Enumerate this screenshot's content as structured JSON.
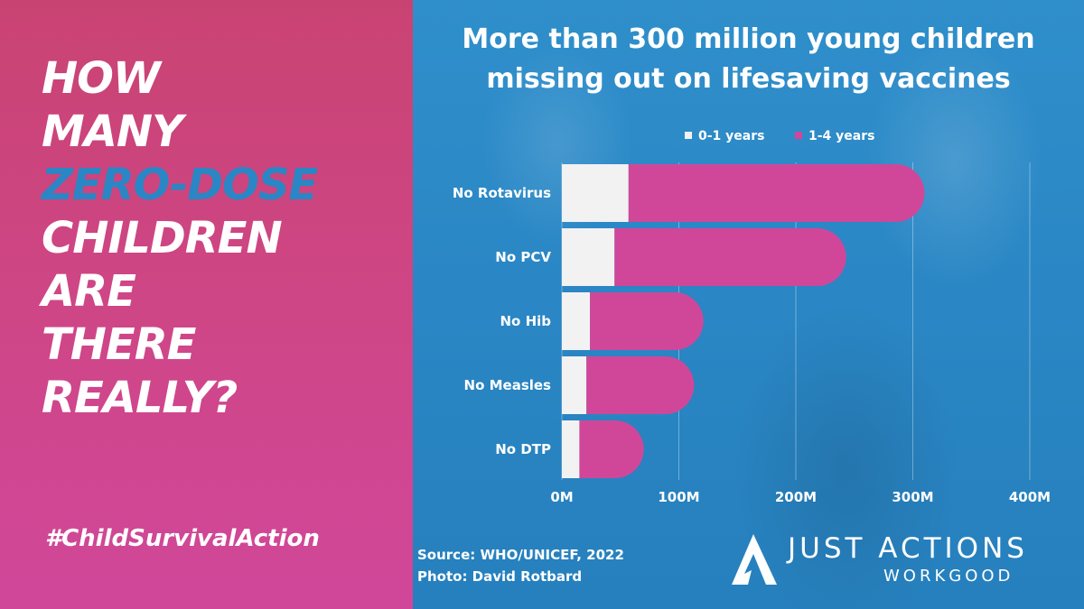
{
  "headline": {
    "lines": [
      "HOW",
      "MANY",
      "ZERO-DOSE",
      "CHILDREN",
      "ARE",
      "THERE",
      "REALLY?"
    ],
    "accent_color": "#2a86c4"
  },
  "hashtag": "#ChildSurvivalAction",
  "source": {
    "line1": "Source: WHO/UNICEF, 2022",
    "line2": "Photo: David Rotbard"
  },
  "logo": {
    "name": "JUST ACTIONS",
    "tagline": "WORKGOOD",
    "icon": "chevron-a-icon"
  },
  "colors": {
    "left_panel": "#cf4688",
    "right_panel": "#2a86c4",
    "series_1": "#f2f2f2",
    "series_2": "#d0479a"
  },
  "chart_data": {
    "type": "bar",
    "orientation": "horizontal",
    "stacked": true,
    "title": [
      "More than 300 million young children",
      "missing out on lifesaving vaccines"
    ],
    "categories": [
      "No Rotavirus",
      "No PCV",
      "No Hib",
      "No Measles",
      "No DTP"
    ],
    "series": [
      {
        "name": "0-1 years",
        "values": [
          57,
          45,
          24,
          21,
          15
        ]
      },
      {
        "name": "1-4 years",
        "values": [
          253,
          198,
          97,
          92,
          55
        ]
      }
    ],
    "xlim": [
      0,
      400
    ],
    "xticks": [
      "0M",
      "100M",
      "200M",
      "300M",
      "400M"
    ],
    "grid": "vertical",
    "legend_position": "top"
  }
}
